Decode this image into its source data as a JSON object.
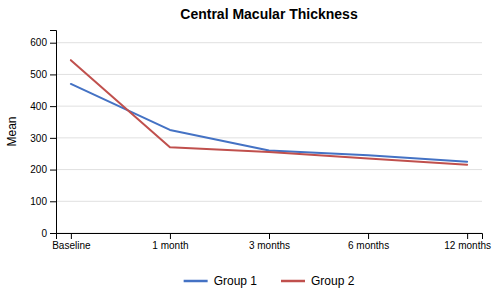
{
  "chart_data": {
    "type": "line",
    "title": "Central Macular Thickness",
    "ylabel": "Mean",
    "categories": [
      "Baseline",
      "1 month",
      "3 months",
      "6 months",
      "12 months"
    ],
    "series": [
      {
        "name": "Group 1",
        "color": "#4472C4",
        "values": [
          470,
          325,
          260,
          245,
          225
        ]
      },
      {
        "name": "Group 2",
        "color": "#C0504D",
        "values": [
          545,
          270,
          255,
          235,
          215
        ]
      }
    ],
    "ylim": [
      0,
      640
    ],
    "yticks": [
      0,
      100,
      200,
      300,
      400,
      500,
      600
    ],
    "grid": true,
    "legend": "bottom"
  }
}
